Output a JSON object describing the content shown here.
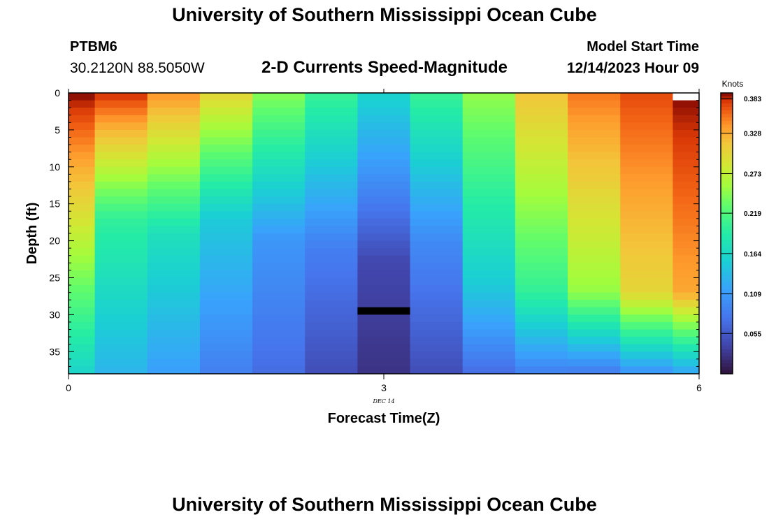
{
  "header": {
    "title": "University of Southern Mississippi Ocean Cube",
    "station": "PTBM6",
    "coordinates": "30.2120N  88.5050W",
    "subtitle": "2-D Currents Speed-Magnitude",
    "model_start_label": "Model Start Time",
    "model_start_time": "12/14/2023 Hour 09"
  },
  "footer": {
    "title": "University of Southern Mississippi Ocean Cube"
  },
  "chart_data": {
    "type": "heatmap",
    "title": "2-D Currents Speed-Magnitude",
    "xlabel": "Forecast Time(Z)",
    "ylabel": "Depth (ft)",
    "x_sublabel": "DEC 14",
    "xlim": [
      0,
      6
    ],
    "ylim": [
      38,
      0
    ],
    "y_inverted": true,
    "x_ticks": [
      "0",
      "3",
      "6"
    ],
    "y_ticks": [
      "0",
      "5",
      "10",
      "15",
      "20",
      "25",
      "30",
      "35"
    ],
    "colorbar": {
      "unit": "Knots",
      "min": 0.0,
      "max": 0.383,
      "tick_labels": [
        "0.383",
        "0.328",
        "0.273",
        "0.219",
        "0.164",
        "0.109",
        "0.055"
      ],
      "colormap": "turbo"
    },
    "x": [
      0,
      0.5,
      1.0,
      1.5,
      2.0,
      2.5,
      3.0,
      3.5,
      4.0,
      4.5,
      5.0,
      5.5,
      6.0
    ],
    "depth_step_ft": 1,
    "columns": [
      {
        "x": 0,
        "surface": 0.383,
        "mid": 0.3,
        "mid_depth": 15,
        "bottom": 0.16
      },
      {
        "x": 0.5,
        "surface": 0.375,
        "mid": 0.2,
        "mid_depth": 17,
        "bottom": 0.13
      },
      {
        "x": 1.0,
        "surface": 0.34,
        "mid": 0.175,
        "mid_depth": 19,
        "bottom": 0.112
      },
      {
        "x": 1.5,
        "surface": 0.3,
        "mid": 0.15,
        "mid_depth": 17,
        "bottom": 0.085
      },
      {
        "x": 2.0,
        "surface": 0.245,
        "mid": 0.105,
        "mid_depth": 20,
        "bottom": 0.07
      },
      {
        "x": 2.5,
        "surface": 0.205,
        "mid": 0.085,
        "mid_depth": 21,
        "bottom": 0.045
      },
      {
        "x": 3.0,
        "surface": 0.16,
        "mid": 0.04,
        "mid_depth": 23,
        "bottom": 0.025
      },
      {
        "x": 3.5,
        "surface": 0.205,
        "mid": 0.095,
        "mid_depth": 20,
        "bottom": 0.045
      },
      {
        "x": 4.0,
        "surface": 0.25,
        "mid": 0.15,
        "mid_depth": 26,
        "bottom": 0.07
      },
      {
        "x": 4.5,
        "surface": 0.315,
        "mid": 0.2,
        "mid_depth": 27,
        "bottom": 0.085
      },
      {
        "x": 5.0,
        "surface": 0.35,
        "mid": 0.25,
        "mid_depth": 27,
        "bottom": 0.08
      },
      {
        "x": 5.5,
        "surface": 0.365,
        "mid": 0.3,
        "mid_depth": 27,
        "bottom": 0.1
      },
      {
        "x": 6.0,
        "surface": 0.383,
        "mid": 0.33,
        "mid_depth": 27,
        "bottom": 0.115
      }
    ],
    "special_marks": [
      {
        "x": 3.0,
        "depth": 29,
        "color": "#000000"
      },
      {
        "x": 6.0,
        "depth": 0,
        "color": "#ffffff"
      }
    ],
    "grid": false,
    "legend": "colorbar-right"
  }
}
